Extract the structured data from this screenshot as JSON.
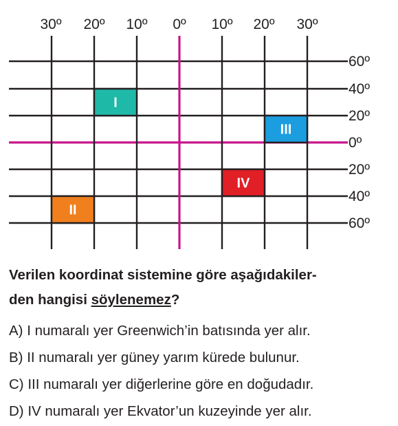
{
  "grid": {
    "longitude_labels": [
      "30º",
      "20º",
      "10º",
      "0º",
      "10º",
      "20º",
      "30º"
    ],
    "latitude_labels": [
      "60º",
      "40º",
      "20º",
      "0º",
      "20º",
      "40º",
      "60º"
    ],
    "colors": {
      "grid_line": "#231f20",
      "axis_line": "#c8168a",
      "region_I": "#1fb9a8",
      "region_II": "#f07f1e",
      "region_III": "#1b9de0",
      "region_IV": "#e11f26"
    },
    "regions": [
      {
        "label": "I",
        "lon_range": [
          10,
          20
        ],
        "lon_dir": "W",
        "lat_range": [
          20,
          40
        ],
        "lat_dir": "N"
      },
      {
        "label": "II",
        "lon_range": [
          20,
          30
        ],
        "lon_dir": "W",
        "lat_range": [
          40,
          60
        ],
        "lat_dir": "S"
      },
      {
        "label": "III",
        "lon_range": [
          20,
          30
        ],
        "lon_dir": "E",
        "lat_range": [
          0,
          20
        ],
        "lat_dir": "N"
      },
      {
        "label": "IV",
        "lon_range": [
          10,
          20
        ],
        "lon_dir": "E",
        "lat_range": [
          20,
          40
        ],
        "lat_dir": "S"
      }
    ]
  },
  "question": {
    "line1": "Verilen koordinat sistemine göre aşağıdakiler-",
    "line2_prefix": "den hangisi ",
    "line2_underlined": "söylenemez",
    "line2_suffix": "?"
  },
  "options": [
    {
      "letter": "A)",
      "text": "I numaralı yer Greenwich’in batısında yer alır."
    },
    {
      "letter": "B)",
      "text": "II numaralı yer güney yarım kürede bulunur."
    },
    {
      "letter": "C)",
      "text": "III numaralı yer diğerlerine göre en doğudadır."
    },
    {
      "letter": "D)",
      "text": "IV numaralı yer Ekvator’un kuzeyinde yer alır."
    }
  ]
}
